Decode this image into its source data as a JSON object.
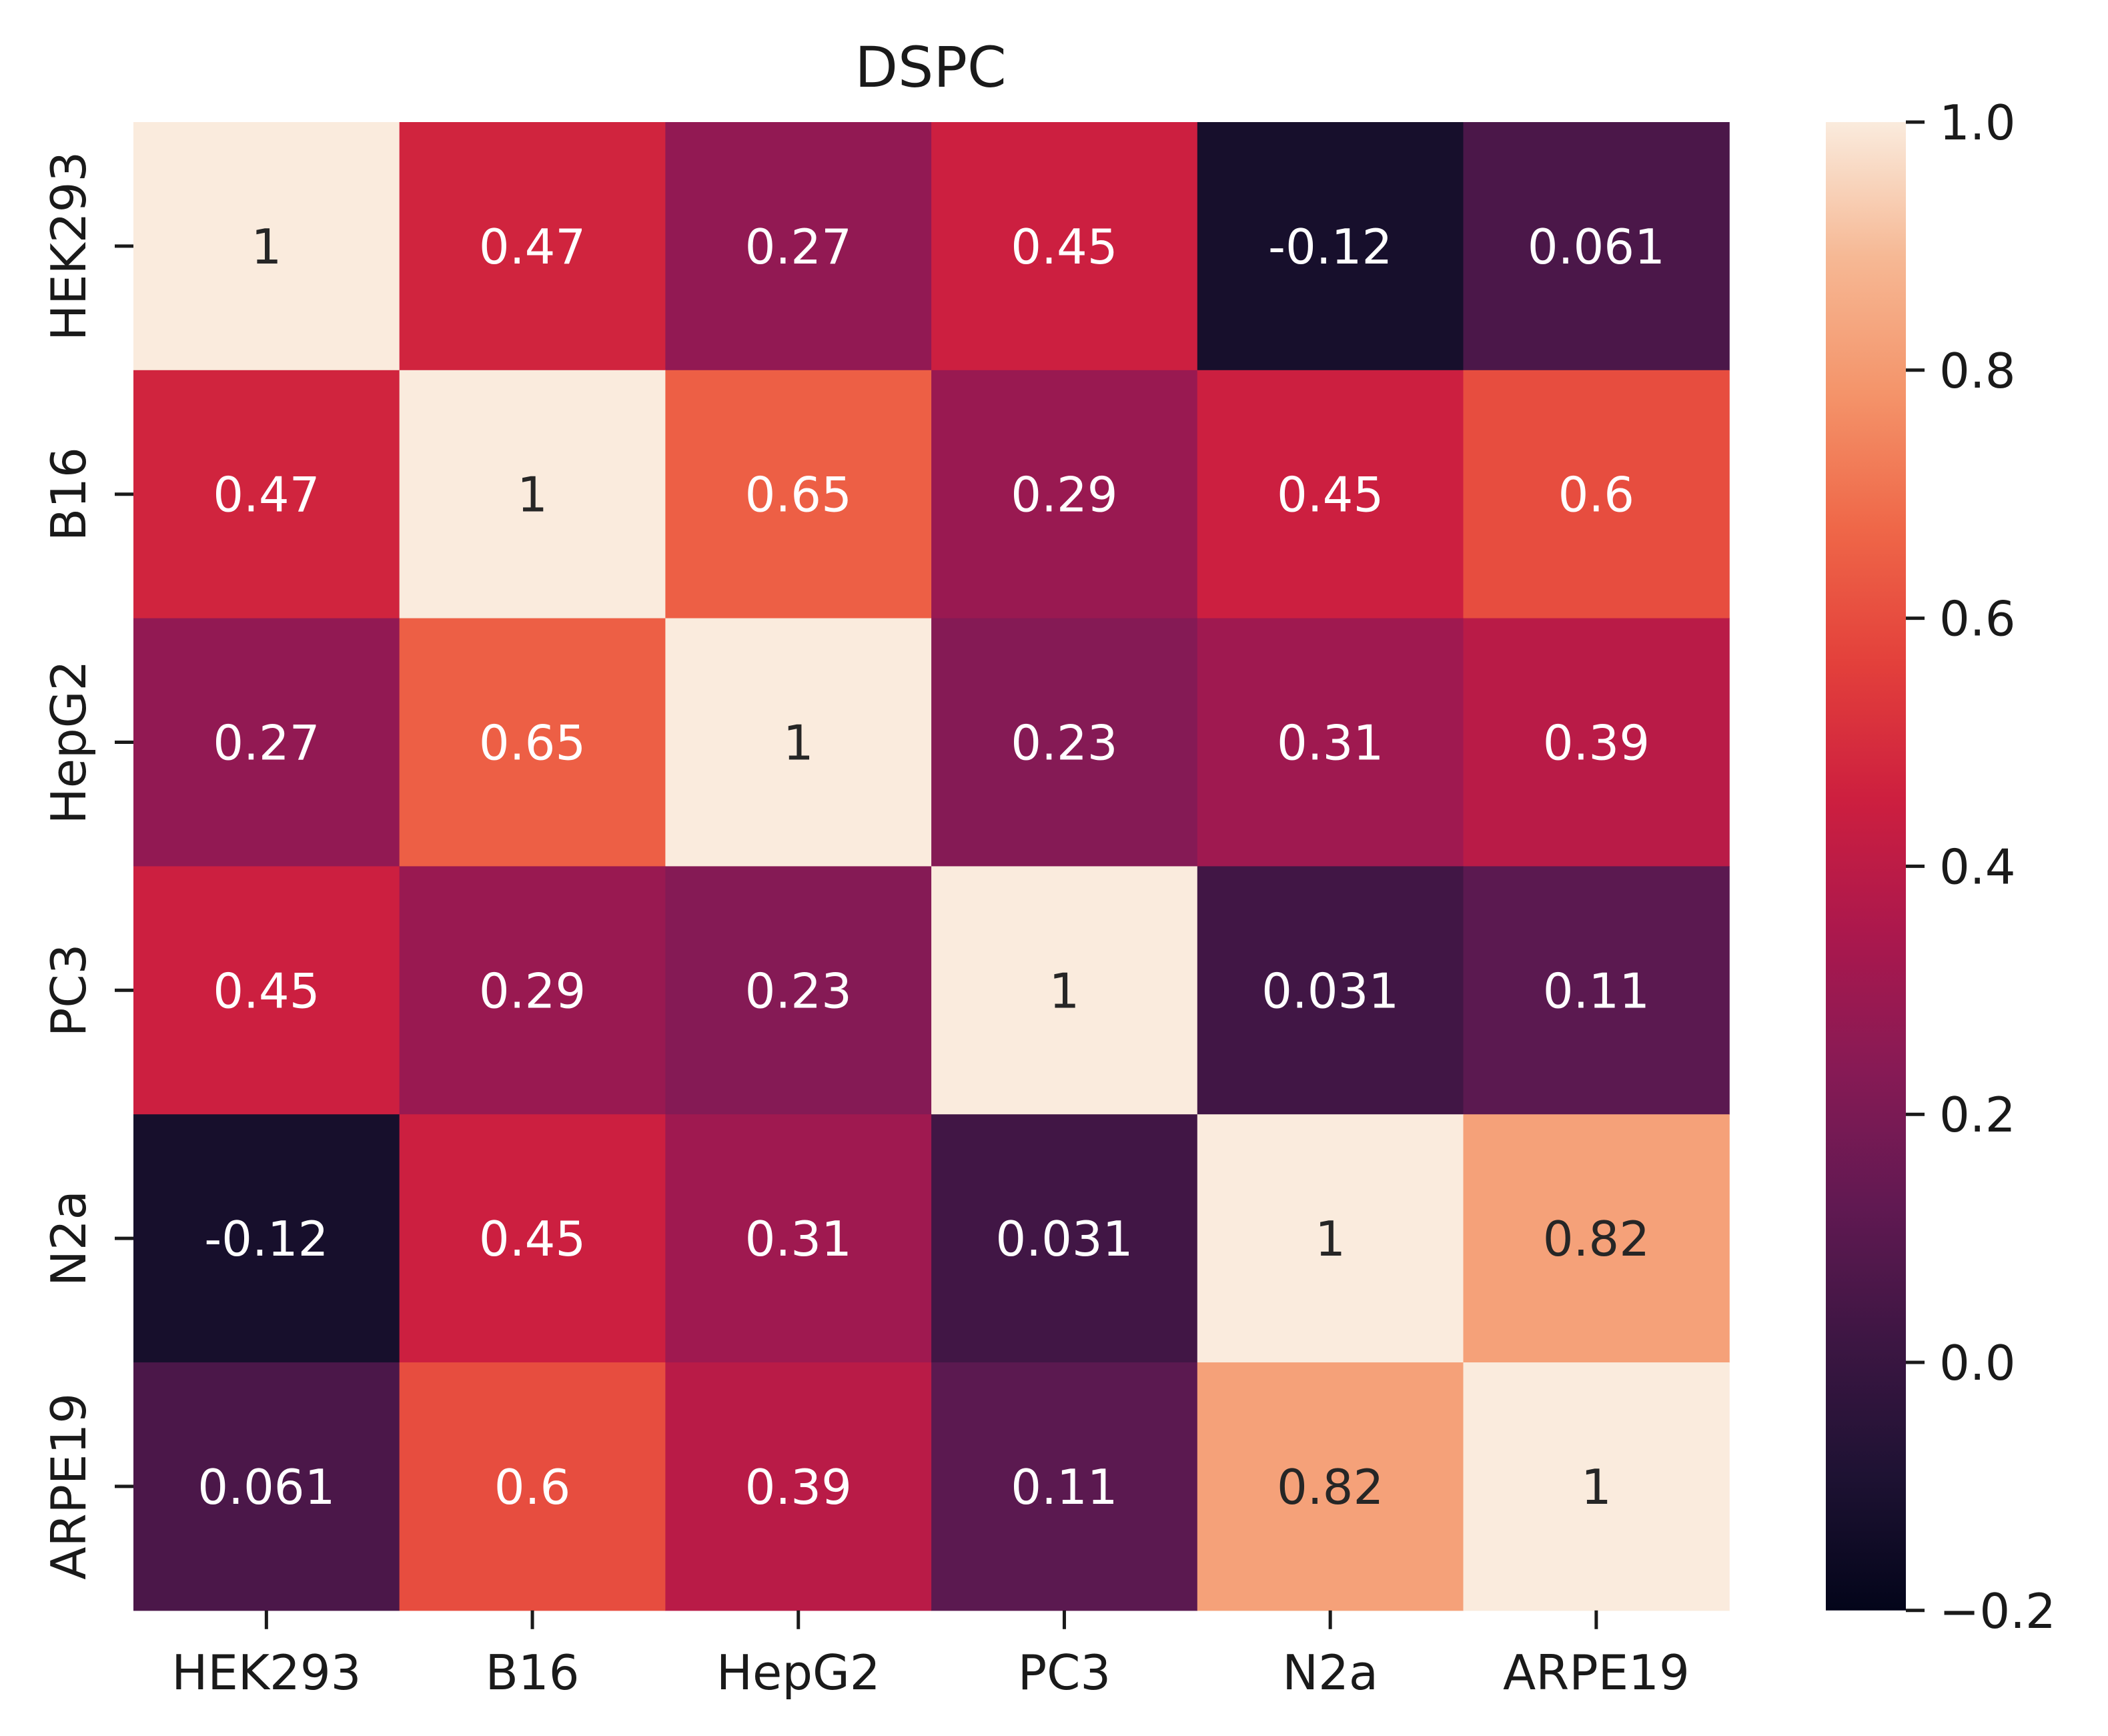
{
  "chart_data": {
    "type": "heatmap",
    "title": "DSPC",
    "xlabel": "",
    "ylabel": "",
    "x_categories": [
      "HEK293",
      "B16",
      "HepG2",
      "PC3",
      "N2a",
      "ARPE19"
    ],
    "y_categories": [
      "HEK293",
      "B16",
      "HepG2",
      "PC3",
      "N2a",
      "ARPE19"
    ],
    "values": [
      [
        1,
        0.47,
        0.27,
        0.45,
        -0.12,
        0.061
      ],
      [
        0.47,
        1,
        0.65,
        0.29,
        0.45,
        0.6
      ],
      [
        0.27,
        0.65,
        1,
        0.23,
        0.31,
        0.39
      ],
      [
        0.45,
        0.29,
        0.23,
        1,
        0.031,
        0.11
      ],
      [
        -0.12,
        0.45,
        0.31,
        0.031,
        1,
        0.82
      ],
      [
        0.061,
        0.6,
        0.39,
        0.11,
        0.82,
        1
      ]
    ],
    "annotations": [
      [
        "1",
        "0.47",
        "0.27",
        "0.45",
        "-0.12",
        "0.061"
      ],
      [
        "0.47",
        "1",
        "0.65",
        "0.29",
        "0.45",
        "0.6"
      ],
      [
        "0.27",
        "0.65",
        "1",
        "0.23",
        "0.31",
        "0.39"
      ],
      [
        "0.45",
        "0.29",
        "0.23",
        "1",
        "0.031",
        "0.11"
      ],
      [
        "-0.12",
        "0.45",
        "0.31",
        "0.031",
        "1",
        "0.82"
      ],
      [
        "0.061",
        "0.6",
        "0.39",
        "0.11",
        "0.82",
        "1"
      ]
    ],
    "colorbar": {
      "min": -0.2,
      "max": 1.0,
      "ticks": [
        1.0,
        0.8,
        0.6,
        0.4,
        0.2,
        0.0,
        -0.2
      ],
      "tick_labels": [
        "1.0",
        "0.8",
        "0.6",
        "0.4",
        "0.2",
        "0.0",
        "−0.2"
      ]
    },
    "colormap": "rocket",
    "colormap_stops": [
      "#03051a",
      "#1e1233",
      "#3d1643",
      "#611952",
      "#871a55",
      "#ab184d",
      "#cd1f3f",
      "#e3403b",
      "#ef6748",
      "#f4946a",
      "#f6b894",
      "#faebdd"
    ],
    "annotation_colors": {
      "light": "#ffffff",
      "dark": "#262626"
    },
    "grid": false
  }
}
